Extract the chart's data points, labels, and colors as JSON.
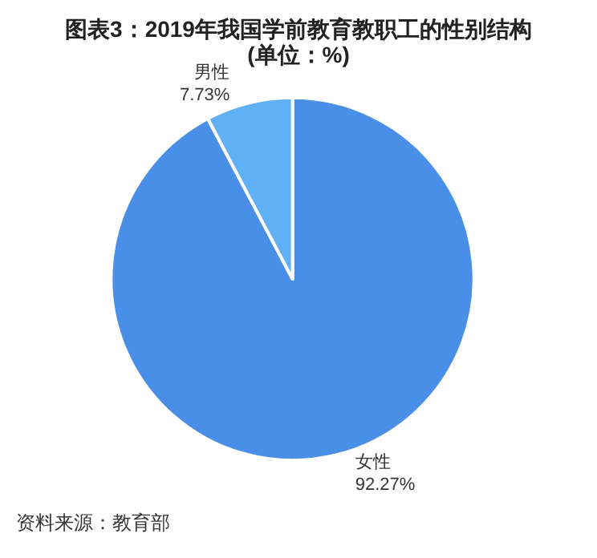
{
  "chart_data": {
    "type": "pie",
    "title": "图表3：2019年我国学前教育教职工的性别结构",
    "subtitle": "(单位：%)",
    "categories": [
      "女性",
      "男性"
    ],
    "values": [
      92.27,
      7.73
    ],
    "colors": [
      "#4a8fe7",
      "#5fb0f5"
    ],
    "value_labels": [
      "92.27%",
      "7.73%"
    ],
    "legend": false,
    "annotations": [
      "资料来源：教育部"
    ]
  }
}
